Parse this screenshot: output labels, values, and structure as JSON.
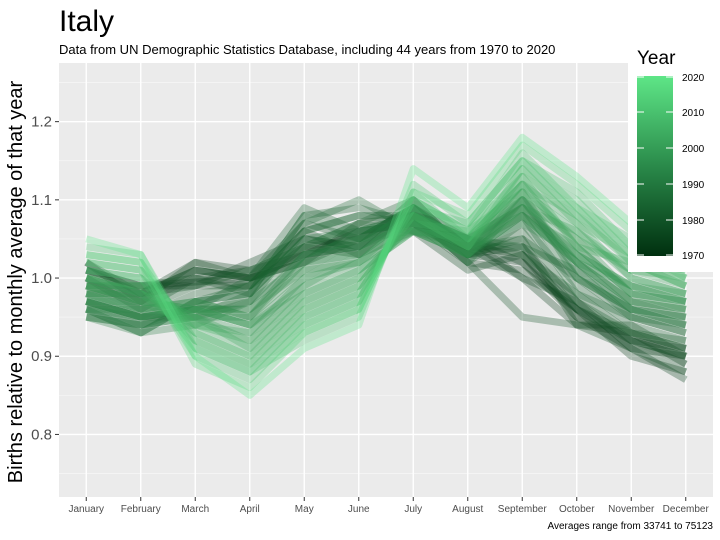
{
  "chart_data": {
    "type": "line",
    "title": "Italy",
    "subtitle": "Data from UN Demographic Statistics Database, including 44 years from 1970 to 2020",
    "ylabel": "Births relative to monthly average of that year",
    "xlabel": "",
    "caption": "Averages range from 33741 to 75123",
    "categories": [
      "January",
      "February",
      "March",
      "April",
      "May",
      "June",
      "July",
      "August",
      "September",
      "October",
      "November",
      "December"
    ],
    "ylim": [
      0.72,
      1.275
    ],
    "yticks": [
      0.8,
      0.9,
      1.0,
      1.1,
      1.2
    ],
    "ytick_labels": [
      "0.8",
      "0.9",
      "1.0",
      "1.1",
      "1.2"
    ],
    "grid": true,
    "legend": {
      "title": "Year",
      "position": "right",
      "range": [
        1970,
        2020
      ],
      "ticks": [
        1970,
        1980,
        1990,
        2000,
        2010,
        2020
      ],
      "tick_labels": [
        "1970",
        "1980",
        "1990",
        "2000",
        "2010",
        "2020"
      ],
      "color_low": "#00300f",
      "color_high": "#5ee687"
    },
    "series": [
      {
        "year": 1970,
        "values": [
          1.01,
          0.99,
          0.995,
          1.0,
          1.03,
          1.04,
          1.07,
          1.03,
          1.02,
          0.96,
          0.92,
          0.91
        ]
      },
      {
        "year": 1971,
        "values": [
          1.0,
          0.98,
          1.01,
          1.0,
          1.02,
          1.05,
          1.08,
          1.04,
          1.03,
          0.95,
          0.91,
          0.9
        ]
      },
      {
        "year": 1972,
        "values": [
          1.02,
          0.97,
          1.0,
          0.99,
          1.04,
          1.03,
          1.09,
          1.05,
          1.0,
          0.94,
          0.93,
          0.89
        ]
      },
      {
        "year": 1973,
        "values": [
          1.01,
          0.98,
          1.02,
          1.01,
          1.03,
          1.06,
          1.07,
          1.02,
          1.01,
          0.96,
          0.9,
          0.88
        ]
      },
      {
        "year": 1974,
        "values": [
          0.99,
          0.99,
          0.99,
          1.02,
          1.05,
          1.04,
          1.1,
          1.03,
          1.04,
          0.97,
          0.91,
          0.87
        ]
      },
      {
        "year": 1975,
        "values": [
          1.0,
          0.97,
          1.01,
          1.0,
          1.02,
          1.07,
          1.08,
          1.05,
          1.02,
          0.95,
          0.92,
          0.9
        ]
      },
      {
        "year": 1976,
        "values": [
          1.02,
          0.98,
          0.99,
          0.99,
          1.06,
          1.03,
          1.06,
          1.01,
          1.03,
          0.96,
          0.93,
          0.91
        ]
      },
      {
        "year": 1977,
        "values": [
          1.0,
          0.96,
          1.0,
          1.01,
          1.04,
          1.05,
          1.09,
          1.04,
          1.0,
          0.97,
          0.92,
          0.89
        ]
      },
      {
        "year": 1978,
        "values": [
          0.99,
          0.97,
          1.02,
          1.0,
          1.03,
          1.06,
          1.07,
          1.03,
          1.05,
          0.94,
          0.94,
          0.9
        ]
      },
      {
        "year": 1979,
        "values": [
          1.01,
          0.99,
          1.0,
          0.98,
          1.05,
          1.04,
          1.08,
          1.02,
          0.95,
          0.94,
          0.91,
          0.88
        ]
      },
      {
        "year": 1980,
        "values": [
          0.98,
          0.98,
          1.01,
          1.0,
          1.07,
          1.05,
          1.09,
          1.04,
          1.04,
          0.96,
          0.92,
          0.9
        ]
      },
      {
        "year": 1981,
        "values": [
          0.97,
          0.95,
          0.98,
          0.99,
          1.06,
          1.08,
          1.08,
          1.05,
          1.03,
          0.98,
          0.93,
          0.91
        ]
      },
      {
        "year": 1982,
        "values": [
          0.99,
          0.96,
          0.99,
          1.01,
          1.04,
          1.07,
          1.1,
          1.03,
          1.06,
          0.97,
          0.93,
          0.92
        ]
      },
      {
        "year": 1983,
        "values": [
          0.97,
          0.94,
          0.97,
          0.98,
          1.08,
          1.09,
          1.07,
          1.04,
          1.05,
          1.0,
          0.95,
          0.93
        ]
      },
      {
        "year": 1984,
        "values": [
          0.98,
          0.95,
          0.96,
          1.0,
          1.09,
          1.06,
          1.08,
          1.02,
          1.07,
          0.99,
          0.94,
          0.92
        ]
      },
      {
        "year": 1985,
        "values": [
          0.96,
          0.93,
          0.97,
          0.99,
          1.07,
          1.1,
          1.06,
          1.05,
          1.04,
          1.01,
          0.96,
          0.94
        ]
      },
      {
        "year": 1986,
        "values": [
          0.97,
          0.95,
          0.95,
          0.98,
          1.08,
          1.05,
          1.09,
          1.03,
          1.08,
          0.98,
          0.95,
          0.93
        ]
      },
      {
        "year": 1987,
        "values": [
          0.95,
          0.94,
          0.96,
          0.97,
          1.06,
          1.08,
          1.07,
          1.04,
          1.09,
          1.0,
          0.96,
          0.95
        ]
      },
      {
        "year": 1988,
        "values": [
          0.96,
          0.93,
          0.97,
          0.98,
          1.05,
          1.06,
          1.08,
          1.02,
          1.1,
          1.01,
          0.95,
          0.94
        ]
      },
      {
        "year": 1989,
        "values": [
          0.95,
          0.94,
          0.95,
          0.97,
          1.04,
          1.07,
          1.06,
          1.04,
          1.08,
          1.02,
          0.97,
          0.95
        ]
      },
      {
        "year": 1990,
        "values": [
          0.96,
          0.95,
          0.96,
          0.96,
          1.03,
          1.05,
          1.08,
          1.03,
          1.11,
          1.0,
          0.96,
          0.94
        ]
      },
      {
        "year": 1991,
        "values": [
          0.95,
          0.93,
          0.94,
          0.97,
          1.02,
          1.06,
          1.07,
          1.05,
          1.09,
          1.03,
          0.97,
          0.96
        ]
      },
      {
        "year": 1992,
        "values": [
          0.96,
          0.94,
          0.95,
          0.95,
          1.03,
          1.04,
          1.09,
          1.04,
          1.1,
          1.02,
          0.96,
          0.95
        ]
      },
      {
        "year": 1993,
        "values": [
          0.97,
          0.95,
          0.96,
          0.96,
          1.01,
          1.05,
          1.06,
          1.03,
          1.08,
          1.04,
          0.98,
          0.97
        ]
      },
      {
        "year": 1994,
        "values": [
          0.96,
          0.96,
          0.97,
          0.95,
          1.02,
          1.03,
          1.08,
          1.05,
          1.09,
          1.02,
          0.97,
          0.96
        ]
      },
      {
        "year": 1995,
        "values": [
          0.97,
          0.95,
          0.96,
          0.94,
          1.0,
          1.04,
          1.07,
          1.04,
          1.07,
          1.03,
          0.99,
          0.97
        ]
      },
      {
        "year": 1996,
        "values": [
          0.98,
          0.96,
          0.97,
          0.95,
          1.01,
          1.02,
          1.06,
          1.03,
          1.1,
          1.05,
          0.98,
          0.96
        ]
      },
      {
        "year": 1997,
        "values": [
          0.97,
          0.97,
          0.96,
          0.94,
          0.99,
          1.03,
          1.08,
          1.05,
          1.08,
          1.02,
          0.99,
          0.98
        ]
      },
      {
        "year": 1998,
        "values": [
          0.98,
          0.96,
          0.95,
          0.93,
          1.0,
          1.02,
          1.07,
          1.04,
          1.12,
          1.04,
          0.98,
          0.97
        ]
      },
      {
        "year": 1999,
        "values": [
          0.99,
          0.97,
          0.96,
          0.94,
          0.98,
          1.01,
          1.06,
          1.03,
          1.09,
          1.06,
          1.0,
          0.98
        ]
      },
      {
        "year": 2000,
        "values": [
          0.98,
          0.98,
          0.95,
          0.92,
          0.99,
          1.02,
          1.08,
          1.05,
          1.1,
          1.03,
          0.99,
          0.97
        ]
      },
      {
        "year": 2001,
        "values": [
          0.99,
          0.97,
          0.94,
          0.93,
          0.97,
          1.0,
          1.07,
          1.04,
          1.11,
          1.05,
          1.01,
          0.99
        ]
      },
      {
        "year": 2002,
        "values": [
          1.0,
          0.98,
          0.95,
          0.91,
          0.98,
          1.01,
          1.06,
          1.05,
          1.12,
          1.07,
          1.0,
          0.98
        ]
      },
      {
        "year": 2003,
        "values": [
          0.99,
          0.99,
          0.94,
          0.92,
          0.96,
          0.99,
          1.08,
          1.04,
          1.13,
          1.04,
          1.02,
          0.99
        ]
      },
      {
        "year": 2004,
        "values": [
          1.0,
          0.98,
          0.93,
          0.9,
          0.97,
          1.0,
          1.07,
          1.06,
          1.11,
          1.06,
          1.01,
          1.0
        ]
      },
      {
        "year": 2005,
        "values": [
          1.01,
          1.0,
          0.94,
          0.91,
          0.95,
          0.98,
          1.09,
          1.05,
          1.12,
          1.08,
          1.02,
          0.99
        ]
      },
      {
        "year": 2006,
        "values": [
          1.0,
          0.99,
          0.92,
          0.89,
          0.96,
          0.99,
          1.08,
          1.04,
          1.14,
          1.07,
          1.03,
          1.0
        ]
      },
      {
        "year": 2007,
        "values": [
          1.02,
          1.01,
          0.93,
          0.9,
          0.94,
          0.97,
          1.1,
          1.06,
          1.13,
          1.09,
          1.02,
          1.01
        ]
      },
      {
        "year": 2008,
        "values": [
          1.01,
          1.0,
          0.91,
          0.88,
          0.95,
          0.98,
          1.09,
          1.07,
          1.15,
          1.08,
          1.04,
          1.0
        ]
      },
      {
        "year": 2009,
        "values": [
          1.03,
          1.02,
          0.92,
          0.89,
          0.93,
          0.96,
          1.11,
          1.05,
          1.14,
          1.1,
          1.03,
          1.02
        ]
      },
      {
        "year": 2010,
        "values": [
          1.02,
          1.01,
          0.9,
          0.87,
          0.94,
          0.97,
          1.1,
          1.06,
          1.16,
          1.09,
          1.05,
          1.01
        ]
      },
      {
        "year": 2011,
        "values": [
          1.04,
          1.03,
          0.91,
          0.88,
          0.92,
          0.95,
          1.12,
          1.07,
          1.15,
          1.11,
          1.04,
          1.03
        ]
      },
      {
        "year": 2015,
        "values": [
          1.03,
          1.02,
          0.89,
          0.86,
          0.93,
          0.96,
          1.11,
          1.08,
          1.17,
          1.12,
          1.06,
          1.02
        ]
      },
      {
        "year": 2020,
        "values": [
          1.05,
          1.03,
          0.9,
          0.85,
          0.91,
          0.94,
          1.14,
          1.09,
          1.18,
          1.13,
          1.07,
          1.04
        ]
      }
    ]
  }
}
